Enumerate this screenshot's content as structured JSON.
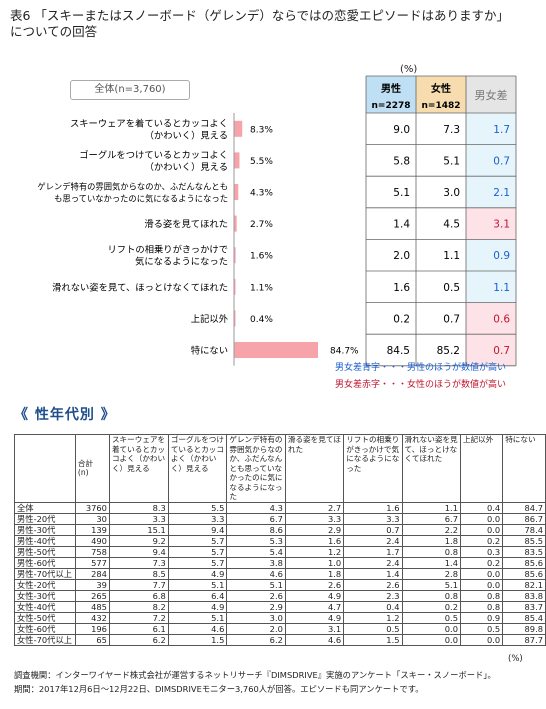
{
  "title_line1": "表6 「スキーまたはスノーボード（ゲレンデ）ならではの恋愛エピソードはありますか」",
  "title_line2": "についての回答",
  "unit": "(%)",
  "total_label": "全体(n=3,760)",
  "headers": {
    "male": "男性",
    "male_n": "n=2278",
    "female": "女性",
    "female_n": "n=1482",
    "diff": "男女差"
  },
  "colors": {
    "bar": "#f7a3aa",
    "male_bg": "#bfe0f4",
    "female_bg": "#f6dcae",
    "diff_bg": "#e5e5e5",
    "blue_text": "#1b5fd0",
    "red_text": "#c0152f",
    "blue_cell": "#e6f5fb",
    "red_cell": "#fde3e7"
  },
  "chart_data": {
    "type": "bar",
    "categories": [
      [
        "スキーウェアを着ているとカッコよく",
        "（かわいく）見える"
      ],
      [
        "ゴーグルをつけているとカッコよく",
        "（かわいく）見える"
      ],
      [
        "ゲレンデ特有の雰囲気からなのか、ふだんなんとも",
        "も思っていなかったのに気になるようになった"
      ],
      [
        "滑る姿を見てほれた"
      ],
      [
        "リフトの相乗りがきっかけで",
        "気になるようになった"
      ],
      [
        "滑れない姿を見て、ほっとけなくてほれた"
      ],
      [
        "上記以外"
      ],
      [
        "特にない"
      ]
    ],
    "values": [
      8.3,
      5.5,
      4.3,
      2.7,
      1.6,
      1.1,
      0.4,
      84.7
    ],
    "value_labels": [
      "8.3%",
      "5.5%",
      "4.3%",
      "2.7%",
      "1.6%",
      "1.1%",
      "0.4%",
      "84.7%"
    ],
    "male": [
      "9.0",
      "5.8",
      "5.1",
      "1.4",
      "2.0",
      "1.6",
      "0.2",
      "84.5"
    ],
    "female": [
      "7.3",
      "5.1",
      "3.0",
      "4.5",
      "1.1",
      "0.5",
      "0.7",
      "85.2"
    ],
    "diff": [
      "1.7",
      "0.7",
      "2.1",
      "3.1",
      "0.9",
      "1.1",
      "0.6",
      "0.7"
    ],
    "diff_color": [
      "blue",
      "blue",
      "blue",
      "red",
      "blue",
      "blue",
      "red",
      "red"
    ],
    "xlim": [
      0,
      100
    ]
  },
  "notes": {
    "blue": "男女差青字・・・男性のほうが数値が高い",
    "red": "男女差赤字・・・女性のほうが数値が高い"
  },
  "section_title": "《 性年代別 》",
  "table2": {
    "headers": [
      "合計\n(n)",
      "スキーウェアを着ているとカッコよく（かわいく）見える",
      "ゴーグルをつけているとカッコよく（かわいく）見える",
      "ゲレンデ特有の雰囲気からなのか、ふだんなんとも思っていなかったのに気になるようになった",
      "滑る姿を見てほれた",
      "リフトの相乗りがきっかけで気になるようになった",
      "滑れない姿を見て、ほっとけなくてほれた",
      "上記以外",
      "特にない"
    ],
    "rows": [
      [
        "全体",
        "3760",
        "8.3",
        "5.5",
        "4.3",
        "2.7",
        "1.6",
        "1.1",
        "0.4",
        "84.7"
      ],
      [
        "男性-20代",
        "30",
        "3.3",
        "3.3",
        "6.7",
        "3.3",
        "3.3",
        "6.7",
        "0.0",
        "86.7"
      ],
      [
        "男性-30代",
        "139",
        "15.1",
        "9.4",
        "8.6",
        "2.9",
        "0.7",
        "2.2",
        "0.0",
        "78.4"
      ],
      [
        "男性-40代",
        "490",
        "9.2",
        "5.7",
        "5.3",
        "1.6",
        "2.4",
        "1.8",
        "0.2",
        "85.5"
      ],
      [
        "男性-50代",
        "758",
        "9.4",
        "5.7",
        "5.4",
        "1.2",
        "1.7",
        "0.8",
        "0.3",
        "83.5"
      ],
      [
        "男性-60代",
        "577",
        "7.3",
        "5.7",
        "3.8",
        "1.0",
        "2.4",
        "1.4",
        "0.2",
        "85.6"
      ],
      [
        "男性-70代以上",
        "284",
        "8.5",
        "4.9",
        "4.6",
        "1.8",
        "1.4",
        "2.8",
        "0.0",
        "85.6"
      ],
      [
        "女性-20代",
        "39",
        "7.7",
        "5.1",
        "5.1",
        "2.6",
        "2.6",
        "5.1",
        "0.0",
        "82.1"
      ],
      [
        "女性-30代",
        "265",
        "6.8",
        "6.4",
        "2.6",
        "4.9",
        "2.3",
        "0.8",
        "0.8",
        "83.8"
      ],
      [
        "女性-40代",
        "485",
        "8.2",
        "4.9",
        "2.9",
        "4.7",
        "0.4",
        "0.2",
        "0.8",
        "83.7"
      ],
      [
        "女性-50代",
        "432",
        "7.2",
        "5.1",
        "3.0",
        "4.9",
        "1.2",
        "0.5",
        "0.9",
        "85.4"
      ],
      [
        "女性-60代",
        "196",
        "6.1",
        "4.6",
        "2.0",
        "3.1",
        "0.5",
        "0.0",
        "0.5",
        "89.8"
      ],
      [
        "女性-70代以上",
        "65",
        "6.2",
        "1.5",
        "6.2",
        "4.6",
        "1.5",
        "0.0",
        "0.0",
        "87.7"
      ]
    ]
  },
  "footer": {
    "line1": "調査機関：インターワイヤード株式会社が運営するネットリサーチ『DIMSDRIVE』実施のアンケート「スキー・スノーボード」。",
    "line2": "期間：2017年12月6日～12月22日、DIMSDRIVEモニター3,760人が回答。エピソードも同アンケートです。"
  }
}
